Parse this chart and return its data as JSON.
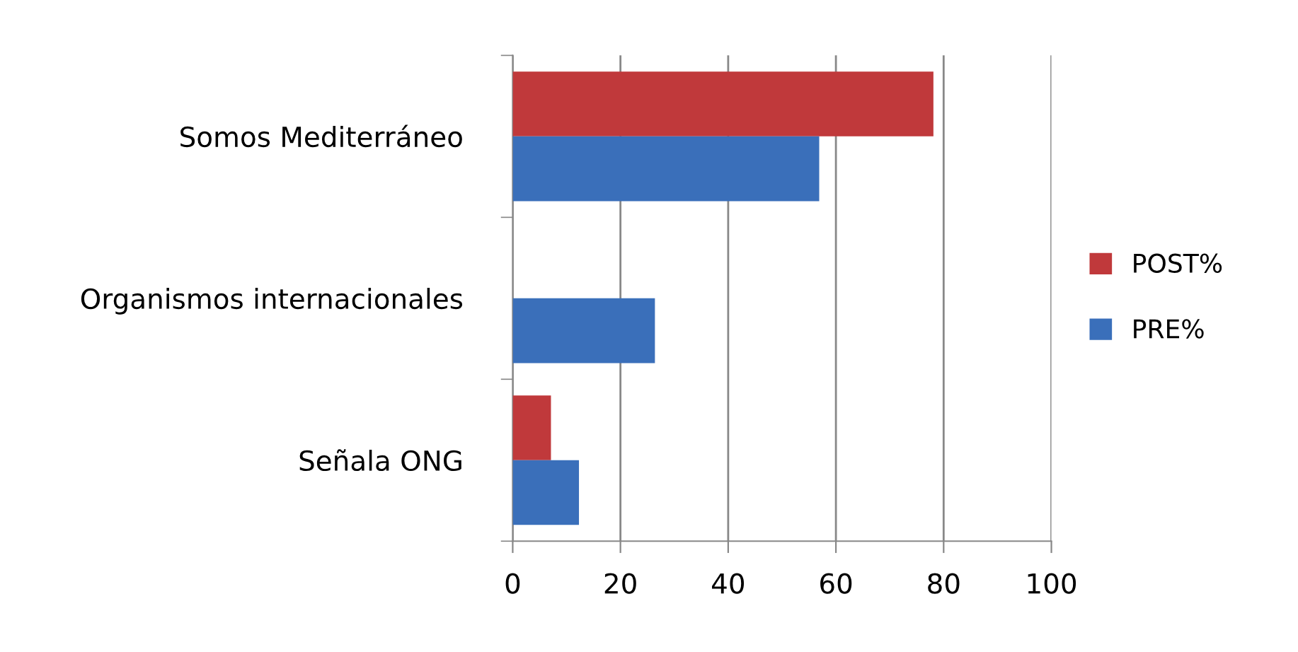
{
  "chart_data": {
    "type": "bar",
    "orientation": "horizontal",
    "categories": [
      "Somos Mediterráneo",
      "Organismos internacionales",
      "Señala ONG"
    ],
    "series": [
      {
        "name": "POST%",
        "color": "#c0393b",
        "values": [
          78.1,
          0,
          7.1
        ]
      },
      {
        "name": "PRE%",
        "color": "#3a6fba",
        "values": [
          56.9,
          26.4,
          12.3
        ]
      }
    ],
    "xlim": [
      0,
      100
    ],
    "xticks": [
      0,
      20,
      40,
      60,
      80,
      100
    ],
    "grid": "x",
    "legend": "right"
  }
}
